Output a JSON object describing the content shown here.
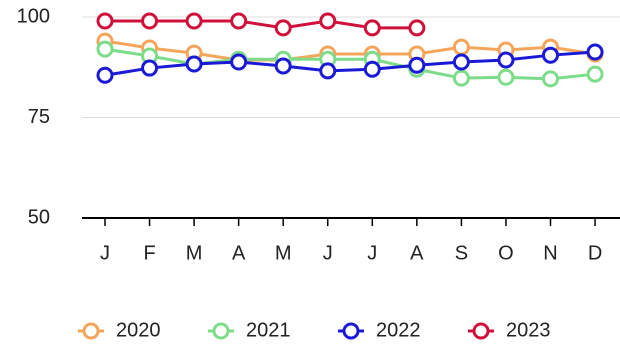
{
  "chart_data": {
    "type": "line",
    "categories": [
      "J",
      "F",
      "M",
      "A",
      "M",
      "J",
      "J",
      "A",
      "S",
      "O",
      "N",
      "D"
    ],
    "series": [
      {
        "name": "2020",
        "color": "#f5a55a",
        "values": [
          94,
          92.3,
          91,
          89.3,
          89.3,
          90.8,
          90.8,
          90.8,
          92.5,
          91.8,
          92.5,
          90.8
        ]
      },
      {
        "name": "2021",
        "color": "#7ddc8a",
        "values": [
          92,
          90.3,
          88.3,
          89.5,
          89.5,
          89.5,
          89.5,
          87,
          84.8,
          85,
          84.6,
          85.8
        ]
      },
      {
        "name": "2022",
        "color": "#1a1ad6",
        "values": [
          85.5,
          87.3,
          88.3,
          88.8,
          87.8,
          86.6,
          87,
          88,
          88.8,
          89.3,
          90.5,
          91.3
        ]
      },
      {
        "name": "2023",
        "color": "#d0103a",
        "values": [
          99,
          99,
          99,
          99,
          97.3,
          99,
          97.3,
          97.3,
          null,
          null,
          null,
          null
        ]
      }
    ],
    "ylim": [
      50,
      100
    ],
    "yticks": [
      50,
      75,
      100
    ],
    "grid": true,
    "legend": "bottom"
  }
}
